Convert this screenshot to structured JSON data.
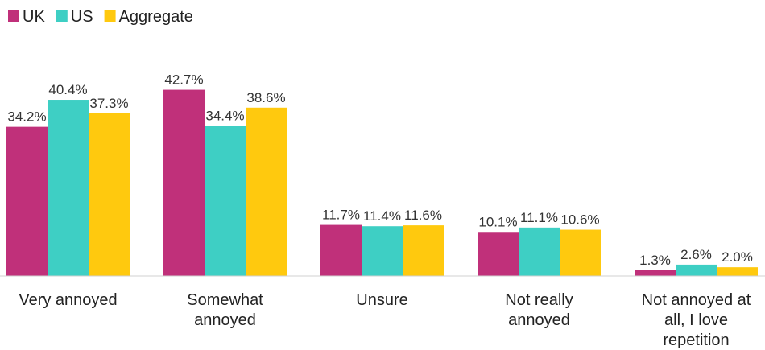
{
  "chart_data": {
    "type": "bar",
    "title": "",
    "xlabel": "",
    "ylabel": "",
    "legend_position": "top-left",
    "grid": false,
    "ylim": [
      0,
      45
    ],
    "categories": [
      [
        "Very annoyed"
      ],
      [
        "Somewhat",
        "annoyed"
      ],
      [
        "Unsure"
      ],
      [
        "Not really",
        "annoyed"
      ],
      [
        "Not annoyed at",
        "all, I love",
        "repetition"
      ]
    ],
    "series": [
      {
        "name": "UK",
        "color": "#C0307A",
        "values": [
          34.2,
          42.7,
          11.7,
          10.1,
          1.3
        ],
        "labels": [
          "34.2%",
          "42.7%",
          "11.7%",
          "10.1%",
          "1.3%"
        ]
      },
      {
        "name": "US",
        "color": "#3ECFC4",
        "values": [
          40.4,
          34.4,
          11.4,
          11.1,
          2.6
        ],
        "labels": [
          "40.4%",
          "34.4%",
          "11.4%",
          "11.1%",
          "2.6%"
        ]
      },
      {
        "name": "Aggregate",
        "color": "#FFC90E",
        "values": [
          37.3,
          38.6,
          11.6,
          10.6,
          2.0
        ],
        "labels": [
          "37.3%",
          "38.6%",
          "11.6%",
          "10.6%",
          "2.0%"
        ]
      }
    ]
  }
}
